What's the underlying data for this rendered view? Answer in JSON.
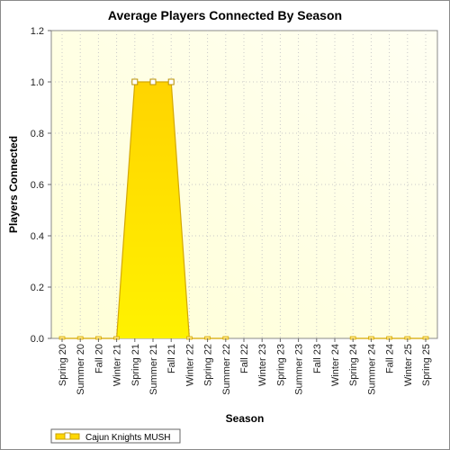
{
  "chart_data": {
    "type": "area",
    "title": "Average Players Connected By Season",
    "xlabel": "Season",
    "ylabel": "Players Connected",
    "ylim": [
      0,
      1.2
    ],
    "yticks": [
      "0.0",
      "0.2",
      "0.4",
      "0.6",
      "0.8",
      "1.0",
      "1.2"
    ],
    "grid": true,
    "legend_position": "bottom-left",
    "categories": [
      "Spring 20",
      "Summer 20",
      "Fall 20",
      "Winter 21",
      "Spring 21",
      "Summer 21",
      "Fall 21",
      "Winter 22",
      "Spring 22",
      "Summer 22",
      "Fall 22",
      "Winter 23",
      "Spring 23",
      "Summer 23",
      "Fall 23",
      "Winter 24",
      "Spring 24",
      "Summer 24",
      "Fall 24",
      "Winter 25",
      "Spring 25"
    ],
    "series": [
      {
        "name": "Cajun Knights MUSH",
        "color": "#ffd700",
        "values": [
          0,
          0,
          0,
          0,
          1,
          1,
          1,
          0,
          0,
          0,
          null,
          null,
          null,
          null,
          null,
          null,
          0,
          0,
          0,
          0,
          0
        ]
      }
    ]
  }
}
